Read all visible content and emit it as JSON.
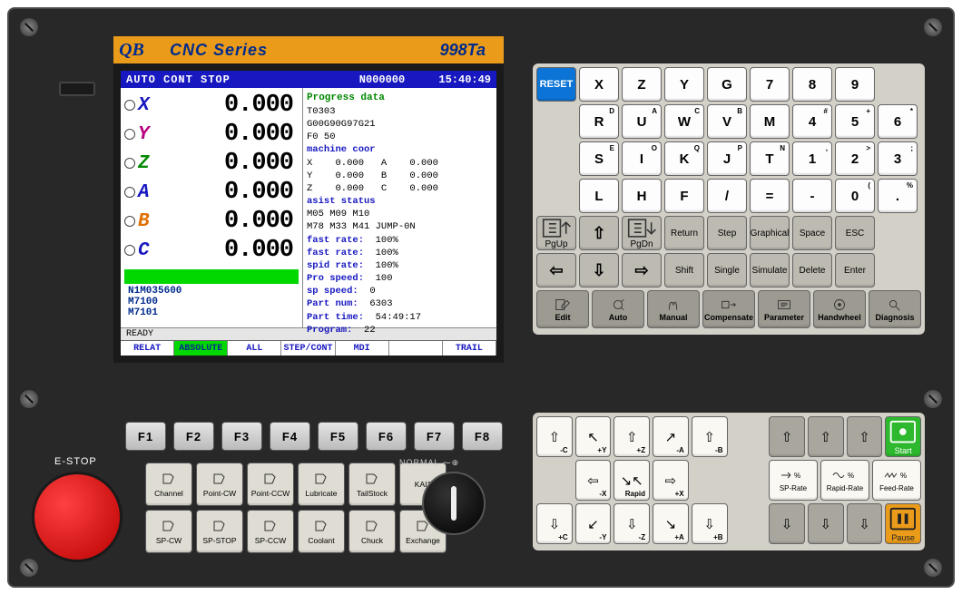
{
  "header": {
    "logo": "QB",
    "series": "CNC Series",
    "model": "998Ta"
  },
  "screen": {
    "top": {
      "mode": "AUTO CONT STOP",
      "prog": "N000000",
      "time": "15:40:49"
    },
    "axes": [
      {
        "label": "X",
        "color": "#1818c0",
        "value": "0.000"
      },
      {
        "label": "Y",
        "color": "#b80080",
        "value": "0.000"
      },
      {
        "label": "Z",
        "color": "#008800",
        "value": "0.000"
      },
      {
        "label": "A",
        "color": "#1818c0",
        "value": "0.000"
      },
      {
        "label": "B",
        "color": "#e07000",
        "value": "0.000"
      },
      {
        "label": "C",
        "color": "#1818c0",
        "value": "0.000"
      }
    ],
    "prog_lines": [
      "N1M035600",
      "M7100",
      "M7101"
    ],
    "info": {
      "progress_title": "Progress data",
      "t": "T0303",
      "g": "G00G90G97G21",
      "f": "F0  50",
      "machine_title": "machine coor",
      "mc": [
        {
          "a": "X",
          "v1": "0.000",
          "b": "A",
          "v2": "0.000"
        },
        {
          "a": "Y",
          "v1": "0.000",
          "b": "B",
          "v2": "0.000"
        },
        {
          "a": "Z",
          "v1": "0.000",
          "b": "C",
          "v2": "0.000"
        }
      ],
      "assist_title": "asist status",
      "as1": "M05   M09   M10",
      "as2": "M78   M33   M41 JUMP-0N",
      "rates": [
        {
          "l": "fast rate:",
          "v": "100%"
        },
        {
          "l": "fast rate:",
          "v": "100%"
        },
        {
          "l": "spid rate:",
          "v": "100%"
        },
        {
          "l": "Pro speed:",
          "v": "100"
        },
        {
          "l": "sp  speed:",
          "v": "0"
        },
        {
          "l": "Part  num:",
          "v": "6303"
        },
        {
          "l": "Part time:",
          "v": "54:49:17"
        },
        {
          "l": "Program:",
          "v": "22"
        }
      ]
    },
    "status": "READY",
    "tabs": [
      "RELAT",
      "ABSOLUTE",
      "ALL",
      "STEP/CONT",
      "MDI",
      "",
      "TRAIL"
    ],
    "active_tab": 1
  },
  "alpha_rows": [
    [
      {
        "main": "RESET",
        "cls": "reset"
      },
      {
        "main": "X"
      },
      {
        "main": "Z"
      },
      {
        "main": "Y"
      },
      {
        "main": "G"
      },
      {
        "main": "7"
      },
      {
        "main": "8"
      },
      {
        "main": "9"
      }
    ],
    [
      null,
      {
        "main": "R",
        "sup": "D"
      },
      {
        "main": "U",
        "sup": "A"
      },
      {
        "main": "W",
        "sup": "C"
      },
      {
        "main": "V",
        "sup": "B"
      },
      {
        "main": "M"
      },
      {
        "main": "4",
        "sup": "#"
      },
      {
        "main": "5",
        "sup": "+"
      },
      {
        "main": "6",
        "sup": "*"
      }
    ],
    [
      null,
      {
        "main": "S",
        "sup": "E"
      },
      {
        "main": "I",
        "sup": "O"
      },
      {
        "main": "K",
        "sup": "Q"
      },
      {
        "main": "J",
        "sup": "P"
      },
      {
        "main": "T",
        "sup": "N"
      },
      {
        "main": "1",
        "sup": ","
      },
      {
        "main": "2",
        "sup": ">"
      },
      {
        "main": "3",
        "sup": ";"
      }
    ],
    [
      null,
      {
        "main": "L"
      },
      {
        "main": "H"
      },
      {
        "main": "F"
      },
      {
        "main": "/"
      },
      {
        "main": "="
      },
      {
        "main": "-"
      },
      {
        "main": "0",
        "sup": "("
      },
      {
        "main": ".",
        "sup": "%"
      }
    ]
  ],
  "nav_rows": [
    [
      {
        "lbl": "PgUp",
        "icon": "pgup"
      },
      {
        "arr": "⇧"
      },
      {
        "lbl": "PgDn",
        "icon": "pgdn"
      },
      {
        "lbl": "Return"
      },
      {
        "lbl": "Step"
      },
      {
        "lbl": "Graphical"
      },
      {
        "lbl": "Space"
      },
      {
        "lbl": "ESC"
      }
    ],
    [
      {
        "arr": "⇦"
      },
      {
        "arr": "⇩"
      },
      {
        "arr": "⇨"
      },
      {
        "lbl": "Shift"
      },
      {
        "lbl": "Single"
      },
      {
        "lbl": "Simulate"
      },
      {
        "lbl": "Delete"
      },
      {
        "lbl": "Enter"
      }
    ]
  ],
  "mode_row": [
    {
      "lbl": "Edit",
      "icon": "edit"
    },
    {
      "lbl": "Auto",
      "icon": "auto"
    },
    {
      "lbl": "Manual",
      "icon": "manual"
    },
    {
      "lbl": "Compensate",
      "icon": "comp"
    },
    {
      "lbl": "Parameter",
      "icon": "param"
    },
    {
      "lbl": "Handwheel",
      "icon": "hand"
    },
    {
      "lbl": "Diagnosis",
      "icon": "diag"
    }
  ],
  "fkeys": [
    "F1",
    "F2",
    "F3",
    "F4",
    "F5",
    "F6",
    "F7",
    "F8"
  ],
  "ctrl_keys": [
    {
      "lbl": "Channel"
    },
    {
      "lbl": "Point-CW"
    },
    {
      "lbl": "Point-CCW"
    },
    {
      "lbl": "Lubricate"
    },
    {
      "lbl": "TailStock"
    },
    {
      "lbl": "KAI1",
      "noicon": true
    },
    {
      "lbl": "SP-CW"
    },
    {
      "lbl": "SP-STOP"
    },
    {
      "lbl": "SP-CCW"
    },
    {
      "lbl": "Coolant"
    },
    {
      "lbl": "Chuck"
    },
    {
      "lbl": "Exchange"
    }
  ],
  "estop_label": "E-STOP",
  "jog_label": "NORMAL ⁓⊕",
  "arrow_rows": [
    [
      {
        "a": "⇧",
        "s": "-C"
      },
      {
        "a": "↖",
        "s": "+Y"
      },
      {
        "a": "⇧",
        "s": "+Z"
      },
      {
        "a": "↗",
        "s": "-A"
      },
      {
        "a": "⇧",
        "s": "-B"
      },
      null,
      {
        "a": "⇧",
        "cls": "grey"
      },
      {
        "a": "⇧",
        "cls": "grey"
      },
      {
        "a": "⇧",
        "cls": "grey"
      },
      {
        "lbl": "Start",
        "cls": "green",
        "icon": "start"
      }
    ],
    [
      null,
      {
        "a": "⇦",
        "s": "-X"
      },
      {
        "a": "↘↖",
        "s": "Rapid"
      },
      {
        "a": "⇨",
        "s": "+X"
      },
      null,
      null,
      {
        "lbl": "SP-Rate",
        "cls": "wide",
        "icon": "sp"
      },
      {
        "lbl": "Rapid-Rate",
        "cls": "wide",
        "icon": "rap"
      },
      {
        "lbl": "Feed-Rate",
        "cls": "wide",
        "icon": "feed"
      }
    ],
    [
      {
        "a": "⇩",
        "s": "+C"
      },
      {
        "a": "↙",
        "s": "-Y"
      },
      {
        "a": "⇩",
        "s": "-Z"
      },
      {
        "a": "↘",
        "s": "+A"
      },
      {
        "a": "⇩",
        "s": "+B"
      },
      null,
      {
        "a": "⇩",
        "cls": "grey"
      },
      {
        "a": "⇩",
        "cls": "grey"
      },
      {
        "a": "⇩",
        "cls": "grey"
      },
      {
        "lbl": "Pause",
        "cls": "orange",
        "icon": "pause"
      }
    ]
  ]
}
